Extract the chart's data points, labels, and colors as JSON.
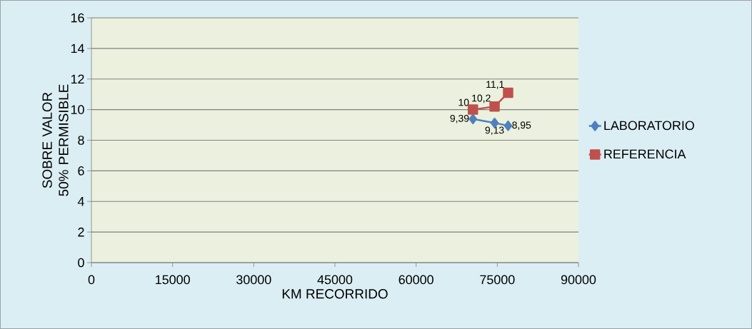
{
  "chart_data": {
    "type": "line",
    "xlabel": "KM  RECORRIDO",
    "ylabel": "SOBRE VALOR 50% PERMISIBLE",
    "x": [
      70500,
      74500,
      77000
    ],
    "series": [
      {
        "name": "LABORATORIO",
        "color": "#4f81bd",
        "marker": "diamond",
        "values": [
          9.39,
          9.13,
          8.95
        ],
        "value_labels": [
          "9,39",
          "9,13",
          "8,95"
        ]
      },
      {
        "name": "REFERENCIA",
        "color": "#c0504d",
        "marker": "square",
        "values": [
          10,
          10.2,
          11.1
        ],
        "value_labels": [
          "10",
          "10,2",
          "11,1"
        ]
      }
    ],
    "xlim": [
      0,
      90000
    ],
    "ylim": [
      0,
      16
    ],
    "xticks": [
      0,
      15000,
      30000,
      45000,
      60000,
      75000,
      90000
    ],
    "yticks": [
      0,
      2,
      4,
      6,
      8,
      10,
      12,
      14,
      16
    ],
    "grid": "y",
    "legend": "right",
    "line_style": "solid"
  }
}
